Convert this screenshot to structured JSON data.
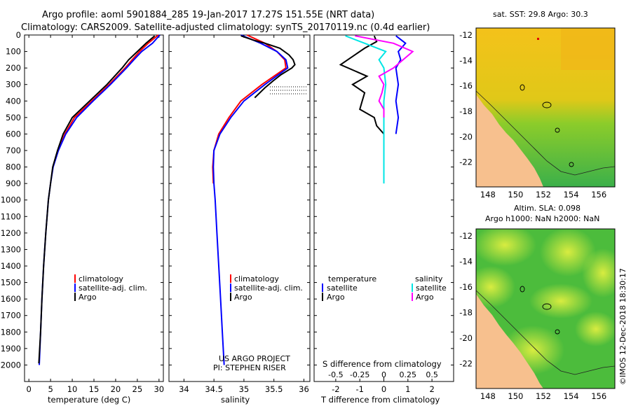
{
  "header": {
    "title_line1": "Argo profile: aoml 5901884_285 19-Jan-2017 17.27S 151.55E (NRT data)",
    "title_line2": "Climatology: CARS2009. Satellite-adjusted climatology: synTS_20170119.nc (0.4d earlier)"
  },
  "colors": {
    "climatology": "#ff0000",
    "satellite": "#0000ff",
    "argo": "#000000",
    "sat_salinity": "#00e5e5",
    "argo_salinity": "#ff00ff",
    "land": "#f7c08e",
    "ocean": "#44bb44"
  },
  "chart_data": [
    {
      "type": "line",
      "title": "",
      "xlabel": "temperature (deg C)",
      "ylabel": "",
      "xlim": [
        -1,
        31
      ],
      "ylim": [
        2100,
        0
      ],
      "xticks": [
        "0",
        "5",
        "10",
        "15",
        "20",
        "25",
        "30"
      ],
      "yticks": [
        "0",
        "100",
        "200",
        "300",
        "400",
        "500",
        "600",
        "700",
        "800",
        "900",
        "1000",
        "1100",
        "1200",
        "1300",
        "1400",
        "1500",
        "1600",
        "1700",
        "1800",
        "1900",
        "2000"
      ],
      "legend": [
        "climatology",
        "satellite-adj. clim.",
        "Argo"
      ],
      "series": [
        {
          "name": "climatology",
          "color": "#ff0000",
          "depth": [
            0,
            50,
            100,
            150,
            200,
            300,
            400,
            500,
            600,
            700
          ],
          "values": [
            29.8,
            27.5,
            25.5,
            23.8,
            22.2,
            18.5,
            14.5,
            10.5,
            8.3,
            6.8
          ]
        },
        {
          "name": "satellite-adj. clim.",
          "color": "#0000ff",
          "depth": [
            0,
            50,
            100,
            150,
            200,
            300,
            400,
            500,
            600,
            700,
            800,
            900,
            1000,
            1200,
            1400,
            1600,
            1800,
            2000
          ],
          "values": [
            30.2,
            28.5,
            26.0,
            24.2,
            22.5,
            18.8,
            14.8,
            11.0,
            8.5,
            6.8,
            5.6,
            5.0,
            4.5,
            3.9,
            3.4,
            3.0,
            2.7,
            2.4
          ]
        },
        {
          "name": "Argo",
          "color": "#000000",
          "depth": [
            5,
            50,
            100,
            150,
            200,
            300,
            400,
            500,
            600,
            700,
            800,
            900,
            1000,
            1200,
            1400,
            1600,
            1800,
            1990
          ],
          "values": [
            29.0,
            27.0,
            25.0,
            23.0,
            21.5,
            18.0,
            14.0,
            10.0,
            7.9,
            6.6,
            5.5,
            5.0,
            4.5,
            3.9,
            3.4,
            3.0,
            2.7,
            2.3
          ]
        }
      ]
    },
    {
      "type": "line",
      "title": "",
      "xlabel": "salinity",
      "xlim": [
        33.75,
        36.1
      ],
      "ylim": [
        2100,
        0
      ],
      "xticks": [
        "34",
        "34.5",
        "35",
        "35.5",
        "36"
      ],
      "legend": [
        "climatology",
        "satellite-adj. clim.",
        "Argo"
      ],
      "footer_note_line1": "US ARGO PROJECT",
      "footer_note_line2": "PI: STEPHEN RISER",
      "series": [
        {
          "name": "climatology",
          "color": "#ff0000",
          "depth": [
            0,
            50,
            100,
            150,
            200,
            300,
            400,
            500,
            600,
            700,
            800,
            900
          ],
          "values": [
            35.05,
            35.35,
            35.55,
            35.68,
            35.7,
            35.3,
            34.95,
            34.75,
            34.58,
            34.5,
            34.48,
            34.49
          ]
        },
        {
          "name": "satellite-adj. clim.",
          "color": "#0000ff",
          "depth": [
            0,
            50,
            100,
            150,
            200,
            300,
            400,
            500,
            600,
            700,
            800,
            900,
            1000,
            1200,
            1400,
            1600,
            1800,
            2000
          ],
          "values": [
            34.95,
            35.28,
            35.55,
            35.7,
            35.73,
            35.35,
            35.0,
            34.78,
            34.6,
            34.5,
            34.49,
            34.5,
            34.52,
            34.55,
            34.58,
            34.61,
            34.64,
            34.67
          ]
        },
        {
          "name": "Argo",
          "color": "#000000",
          "depth": [
            5,
            30,
            50,
            80,
            120,
            150,
            180,
            200,
            240,
            280,
            320,
            380
          ],
          "values": [
            34.95,
            35.15,
            35.35,
            35.6,
            35.75,
            35.82,
            35.85,
            35.8,
            35.62,
            35.48,
            35.35,
            35.18
          ]
        }
      ]
    },
    {
      "type": "line",
      "title": "",
      "xlabel": "T difference from climatology",
      "xlabel_secondary": "S difference from climatology",
      "xlim": [
        -2.9,
        2.9
      ],
      "ylim": [
        2100,
        0
      ],
      "xticks": [
        "-2",
        "-1",
        "0",
        "1",
        "2"
      ],
      "xticks_secondary": [
        "-0.5",
        "-0.25",
        "0",
        "0.25",
        "0.5"
      ],
      "legend_titles": [
        "temperature",
        "salinity"
      ],
      "legend": [
        "satellite",
        "Argo",
        "satellite",
        "Argo"
      ],
      "series": [
        {
          "name": "T satellite",
          "color": "#0000ff",
          "depth": [
            5,
            50,
            100,
            150,
            200,
            300,
            400,
            500,
            600
          ],
          "values": [
            0.5,
            0.9,
            0.6,
            0.7,
            0.5,
            0.6,
            0.5,
            0.6,
            0.5
          ]
        },
        {
          "name": "T Argo",
          "color": "#000000",
          "depth": [
            5,
            40,
            80,
            120,
            180,
            250,
            300,
            350,
            400,
            450,
            500,
            550,
            600
          ],
          "values": [
            -0.4,
            -0.3,
            -0.8,
            -1.2,
            -1.8,
            -0.7,
            -1.3,
            -0.8,
            -0.9,
            -1.0,
            -0.4,
            -0.3,
            0.0
          ]
        },
        {
          "name": "S satellite",
          "color": "#00e5e5",
          "depth": [
            5,
            50,
            100,
            150,
            200,
            300,
            400,
            500,
            600,
            700,
            800,
            900
          ],
          "values": [
            -0.4,
            -0.2,
            0.02,
            -0.05,
            0.0,
            0.02,
            0.0,
            0.0,
            0.0,
            0.0,
            0.0,
            0.0
          ]
        },
        {
          "name": "S Argo",
          "color": "#ff00ff",
          "depth": [
            5,
            50,
            100,
            150,
            200,
            250,
            300,
            350,
            400,
            450,
            500
          ],
          "values": [
            -0.3,
            0.1,
            0.3,
            0.2,
            0.1,
            -0.05,
            0.0,
            -0.02,
            -0.05,
            0.0,
            0.0
          ]
        }
      ]
    }
  ],
  "map_sst": {
    "title": "sat. SST: 29.8 Argo: 30.3",
    "x_ticks": [
      "148",
      "150",
      "152",
      "154",
      "156"
    ],
    "y_ticks": [
      "-12",
      "-14",
      "-16",
      "-18",
      "-20",
      "-22"
    ]
  },
  "map_sla": {
    "title_line1": "Altim. SLA: 0.098",
    "title_line2": "Argo h1000: NaN h2000: NaN",
    "x_ticks": [
      "148",
      "150",
      "152",
      "154",
      "156"
    ],
    "y_ticks": [
      "-12",
      "-14",
      "-16",
      "-18",
      "-20",
      "-22"
    ]
  },
  "credit": "©IMOS 12-Dec-2018 18:30:17"
}
